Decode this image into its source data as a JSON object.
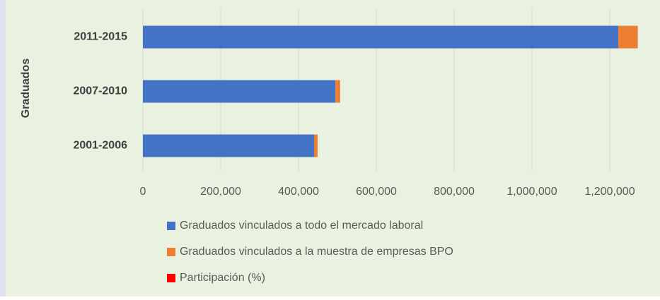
{
  "chart_data": {
    "type": "stacked-barh",
    "y_label": "Graduados",
    "categories": [
      "2011-2015",
      "2007-2010",
      "2001-2006"
    ],
    "series": [
      {
        "name": "Graduados vinculados a todo el mercado laboral",
        "color": "#4472c4",
        "values": [
          1222000,
          495000,
          440000
        ]
      },
      {
        "name": "Graduados vinculados a la muestra de empresas BPO",
        "color": "#ed7d31",
        "values": [
          50000,
          12000,
          9000
        ]
      },
      {
        "name": "Participación (%)",
        "color": "#ff0000",
        "values": [
          null,
          null,
          null
        ]
      }
    ],
    "xlim": [
      0,
      1300000
    ],
    "xticks": [
      0,
      {
        "value": 200000,
        "label": "200,000"
      },
      {
        "value": 400000,
        "label": "400,000"
      },
      {
        "value": 600000,
        "label": "600,000"
      },
      {
        "value": 800000,
        "label": "800,000"
      },
      {
        "value": 1000000,
        "label": "1,000,000"
      },
      {
        "value": 1200000,
        "label": "1,200,000"
      }
    ],
    "grid": true,
    "legend": "bottom"
  }
}
